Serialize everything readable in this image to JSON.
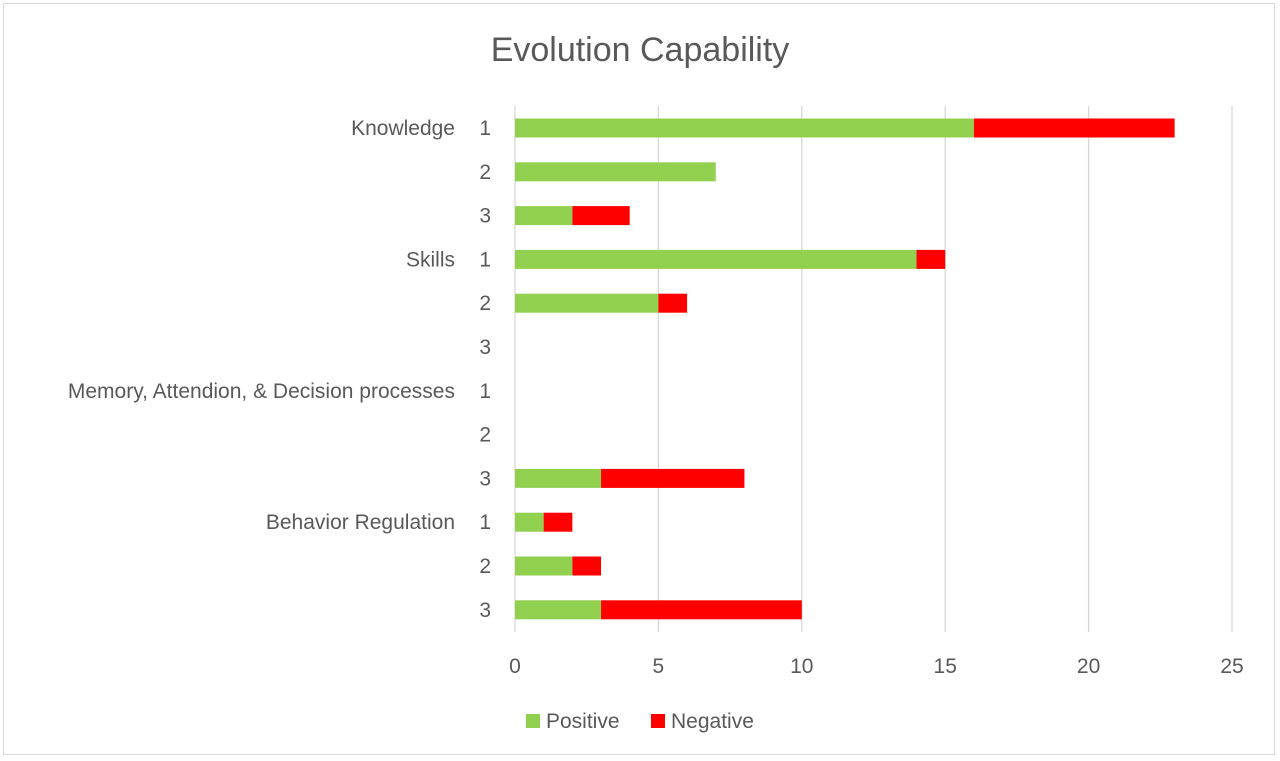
{
  "chart_data": {
    "type": "bar",
    "orientation": "horizontal",
    "stacked": true,
    "title": "Evolution Capability",
    "xlabel": "",
    "ylabel": "",
    "xlim": [
      0,
      25
    ],
    "x_ticks": [
      0,
      5,
      10,
      15,
      20,
      25
    ],
    "grid": true,
    "legend_position": "bottom",
    "groups": [
      "Knowledge",
      "Skills",
      "Memory, Attendion, & Decision processes",
      "Behavior Regulation"
    ],
    "categories": [
      {
        "group": "Knowledge",
        "label": "1"
      },
      {
        "group": "Knowledge",
        "label": "2"
      },
      {
        "group": "Knowledge",
        "label": "3"
      },
      {
        "group": "Skills",
        "label": "1"
      },
      {
        "group": "Skills",
        "label": "2"
      },
      {
        "group": "Skills",
        "label": "3"
      },
      {
        "group": "Memory, Attendion, & Decision processes",
        "label": "1"
      },
      {
        "group": "Memory, Attendion, & Decision processes",
        "label": "2"
      },
      {
        "group": "Memory, Attendion, & Decision processes",
        "label": "3"
      },
      {
        "group": "Behavior Regulation",
        "label": "1"
      },
      {
        "group": "Behavior Regulation",
        "label": "2"
      },
      {
        "group": "Behavior Regulation",
        "label": "3"
      }
    ],
    "series": [
      {
        "name": "Positive",
        "color": "#92d050",
        "values": [
          16,
          7,
          2,
          14,
          5,
          0,
          0,
          0,
          3,
          1,
          2,
          3
        ]
      },
      {
        "name": "Negative",
        "color": "#ff0000",
        "values": [
          7,
          0,
          2,
          1,
          1,
          0,
          0,
          0,
          5,
          1,
          1,
          7
        ]
      }
    ]
  }
}
